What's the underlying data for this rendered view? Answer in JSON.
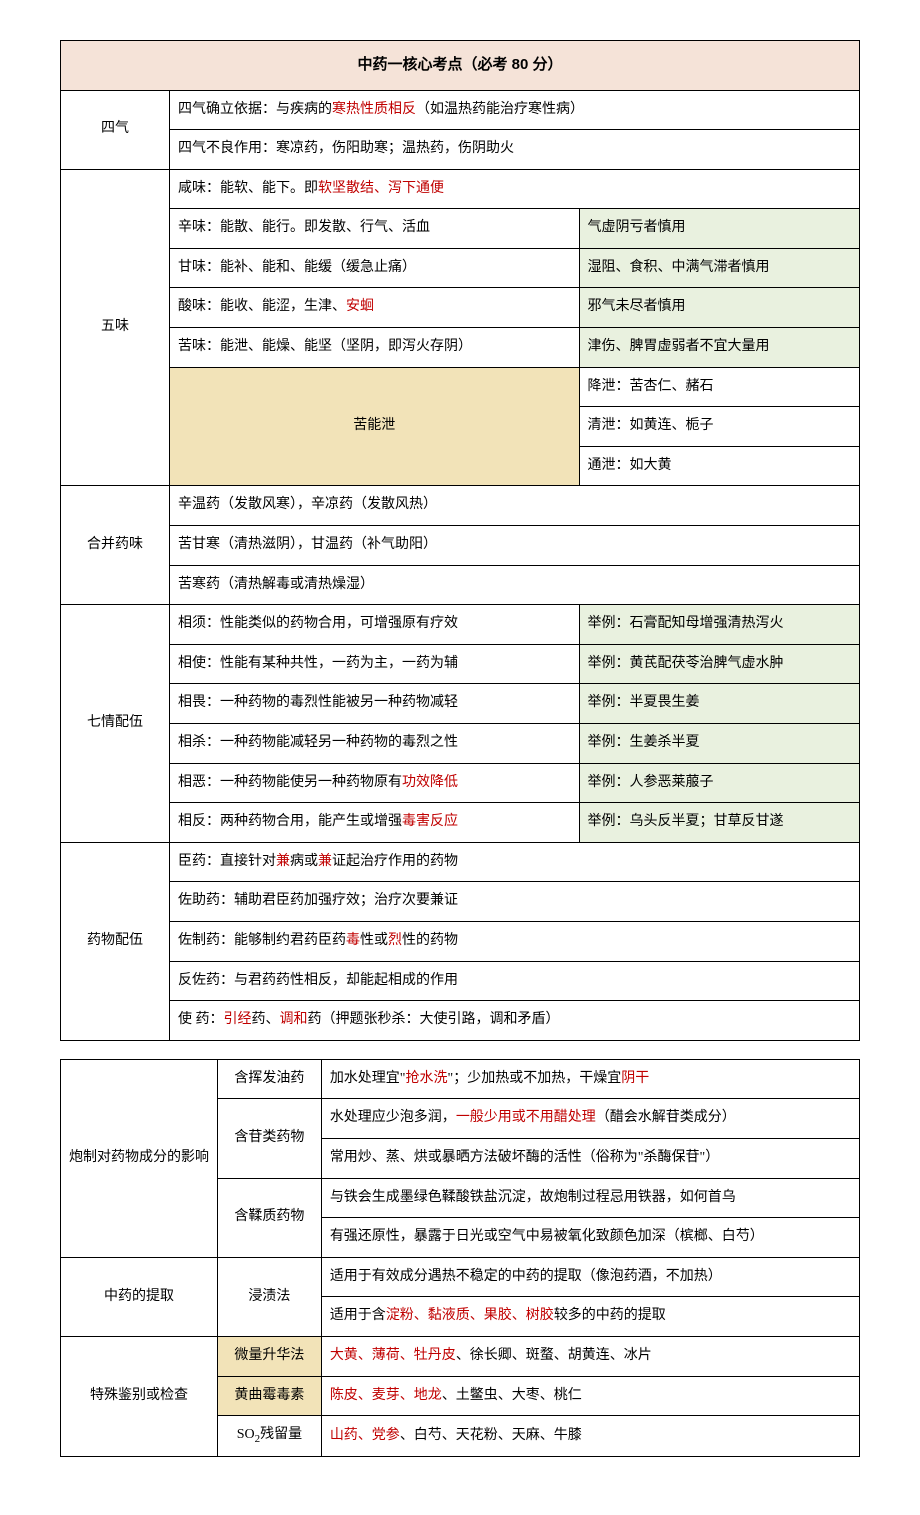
{
  "title": "中药一核心考点（必考 80 分）",
  "table1": {
    "siqi": {
      "label": "四气",
      "r1a": "四气确立依据：与疾病的",
      "r1b": "寒热性质相反",
      "r1c": "（如温热药能治疗寒性病）",
      "r2": "四气不良作用：寒凉药，伤阳助寒；温热药，伤阴助火"
    },
    "wuwei": {
      "label": "五味",
      "r1a": "咸味：能软、能下。即",
      "r1b": "软坚散结、泻下通便",
      "r2": "辛味：能散、能行。即发散、行气、活血",
      "r2ex": "气虚阴亏者慎用",
      "r3": "甘味：能补、能和、能缓（缓急止痛）",
      "r3ex": "湿阻、食积、中满气滞者慎用",
      "r4a": "酸味：能收、能涩，生津、",
      "r4b": "安蛔",
      "r4ex": "邪气未尽者慎用",
      "r5": "苦味：能泄、能燥、能坚（坚阴，即泻火存阴）",
      "r5ex": "津伤、脾胃虚弱者不宜大量用",
      "kunengxie": "苦能泄",
      "k1": "降泄：苦杏仁、赭石",
      "k2": "清泄：如黄连、栀子",
      "k3": "通泄：如大黄"
    },
    "hebing": {
      "label": "合并药味",
      "r1": "辛温药（发散风寒），辛凉药（发散风热）",
      "r2": "苦甘寒（清热滋阴），甘温药（补气助阳）",
      "r3": "苦寒药（清热解毒或清热燥湿）"
    },
    "qiqing": {
      "label": "七情配伍",
      "r1": "相须：性能类似的药物合用，可增强原有疗效",
      "r1ex": "举例：石膏配知母增强清热泻火",
      "r2": "相使：性能有某种共性，一药为主，一药为辅",
      "r2ex": "举例：黄芪配茯苓治脾气虚水肿",
      "r3": "相畏：一种药物的毒烈性能被另一种药物减轻",
      "r3ex": "举例：半夏畏生姜",
      "r4": "相杀：一种药物能减轻另一种药物的毒烈之性",
      "r4ex": "举例：生姜杀半夏",
      "r5a": "相恶：一种药物能使另一种药物原有",
      "r5b": "功效降低",
      "r5ex": "举例：人参恶莱菔子",
      "r6a": "相反：两种药物合用，能产生或增强",
      "r6b": "毒害反应",
      "r6ex": "举例：乌头反半夏；甘草反甘遂"
    },
    "yaowu": {
      "label": "药物配伍",
      "r1a": "臣药：直接针对",
      "r1b": "兼",
      "r1c": "病或",
      "r1d": "兼",
      "r1e": "证起治疗作用的药物",
      "r2": "佐助药：辅助君臣药加强疗效；治疗次要兼证",
      "r3a": "佐制药：能够制约君药臣药",
      "r3b": "毒",
      "r3c": "性或",
      "r3d": "烈",
      "r3e": "性的药物",
      "r4": "反佐药：与君药药性相反，却能起相成的作用",
      "r5a": "使 药：",
      "r5b": "引经",
      "r5c": "药、",
      "r5d": "调和",
      "r5e": "药（押题张秒杀：大使引路，调和矛盾）"
    }
  },
  "table2": {
    "paozhi": {
      "label": "炮制对药物成分的影响",
      "sub1": "含挥发油药",
      "s1r1a": "加水处理宜\"",
      "s1r1b": "抢水洗",
      "s1r1c": "\"；少加热或不加热，干燥宜",
      "s1r1d": "阴干",
      "sub2": "含苷类药物",
      "s2r1a": "水处理应少泡多润，",
      "s2r1b": "一般少用或不用醋处理",
      "s2r1c": "（醋会水解苷类成分）",
      "s2r2": "常用炒、蒸、烘或暴晒方法破坏酶的活性（俗称为\"杀酶保苷\"）",
      "sub3": "含鞣质药物",
      "s3r1": "与铁会生成墨绿色鞣酸铁盐沉淀，故炮制过程忌用铁器，如何首乌",
      "s3r2": "有强还原性，暴露于日光或空气中易被氧化致颜色加深（槟榔、白芍）"
    },
    "tiqu": {
      "label": "中药的提取",
      "sub": "浸渍法",
      "r1": "适用于有效成分遇热不稳定的中药的提取（像泡药酒，不加热）",
      "r2a": "适用于含",
      "r2b": "淀粉、黏液质、果胶、树胶",
      "r2c": "较多的中药的提取"
    },
    "teshu": {
      "label": "特殊鉴别或检查",
      "sub1": "微量升华法",
      "s1a": "大黄、薄荷、牡丹皮",
      "s1b": "、徐长卿、斑蝥、胡黄连、冰片",
      "sub2": "黄曲霉毒素",
      "s2a": "陈皮、麦芽、地龙",
      "s2b": "、土鳖虫、大枣、桃仁",
      "sub3": "SO",
      "sub3b": "残留量",
      "s3a": "山药、党参",
      "s3b": "、白芍、天花粉、天麻、牛膝"
    }
  }
}
